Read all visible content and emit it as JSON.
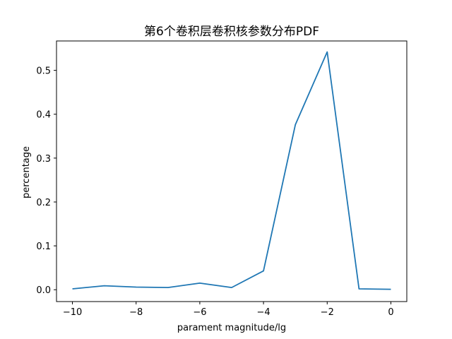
{
  "chart_data": {
    "type": "line",
    "title": "第6个卷积层卷积核参数分布PDF",
    "xlabel": "parament magnitude/lg",
    "ylabel": "percentage",
    "xlim": [
      -10.5,
      0.5
    ],
    "ylim": [
      -0.027,
      0.567
    ],
    "xticks": [
      -10,
      -8,
      -6,
      -4,
      -2,
      0
    ],
    "xtick_labels": [
      "−10",
      "−8",
      "−6",
      "−4",
      "−2",
      "0"
    ],
    "yticks": [
      0.0,
      0.1,
      0.2,
      0.3,
      0.4,
      0.5
    ],
    "ytick_labels": [
      "0.0",
      "0.1",
      "0.2",
      "0.3",
      "0.4",
      "0.5"
    ],
    "grid": false,
    "series": [
      {
        "color": "#1f77b4",
        "x": [
          -10,
          -9,
          -8,
          -7,
          -6,
          -5,
          -4,
          -3,
          -2,
          -1,
          0
        ],
        "y": [
          0.002,
          0.009,
          0.006,
          0.005,
          0.015,
          0.005,
          0.043,
          0.376,
          0.542,
          0.002,
          0.001
        ]
      }
    ]
  }
}
